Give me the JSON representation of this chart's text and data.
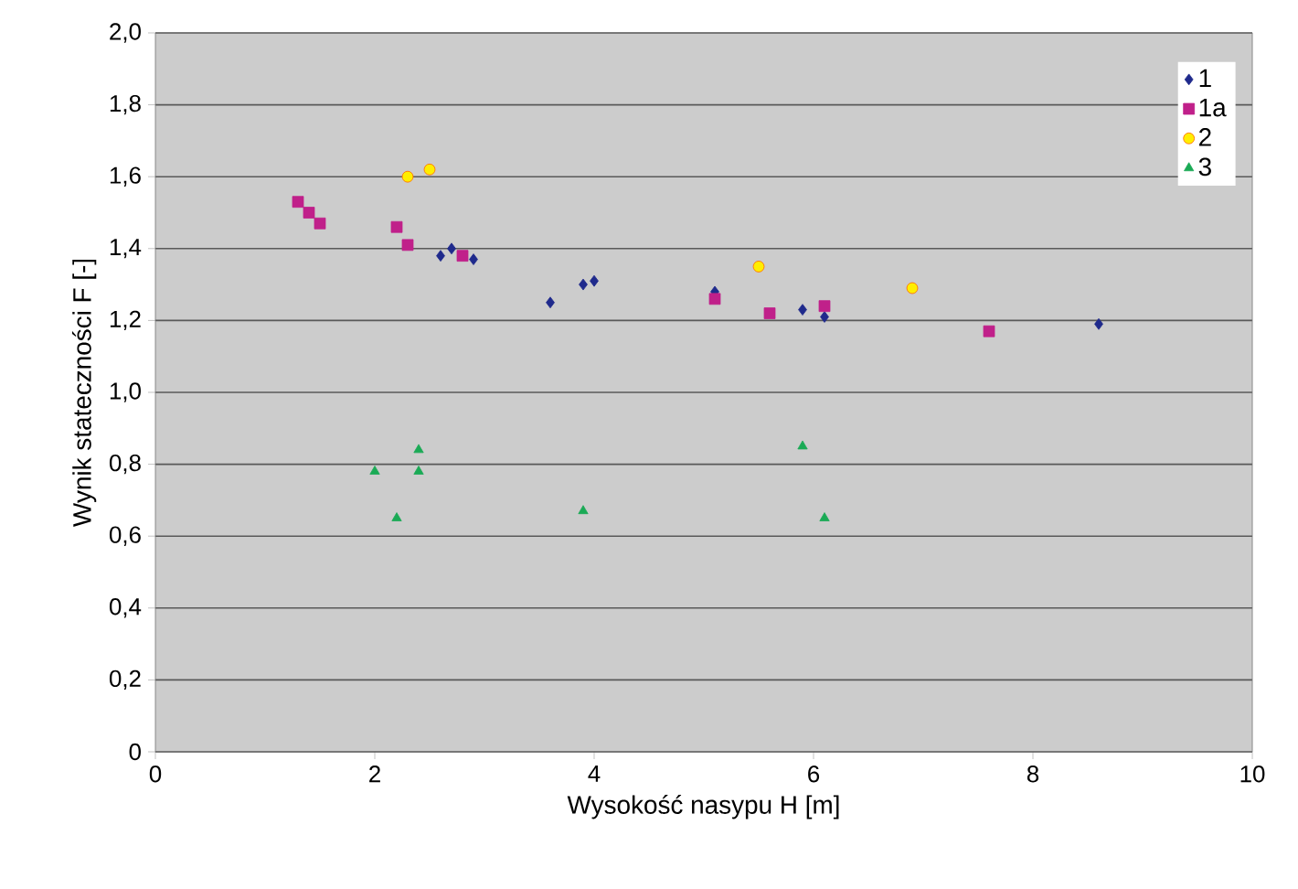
{
  "chart_data": {
    "type": "scatter",
    "xlabel": "Wysokość nasypu H [m]",
    "ylabel": "Wynik stateczności F [-]",
    "xlim": [
      0,
      10
    ],
    "xticks": [
      0,
      2,
      4,
      6,
      8,
      10
    ],
    "ylim": [
      0,
      2
    ],
    "yticks": [
      {
        "value": 0,
        "label": "0"
      },
      {
        "value": 0.2,
        "label": "0,2"
      },
      {
        "value": 0.4,
        "label": "0,4"
      },
      {
        "value": 0.6,
        "label": "0,6"
      },
      {
        "value": 0.8,
        "label": "0,8"
      },
      {
        "value": 1.0,
        "label": "1,0"
      },
      {
        "value": 1.2,
        "label": "1,2"
      },
      {
        "value": 1.4,
        "label": "1,4"
      },
      {
        "value": 1.6,
        "label": "1,6"
      },
      {
        "value": 1.8,
        "label": "1,8"
      },
      {
        "value": 2.0,
        "label": "2,0"
      }
    ],
    "grid": "y",
    "legend": "top right",
    "series": [
      {
        "name": "1",
        "color": "#1f2a8c",
        "marker": "diamond",
        "x": [
          2.6,
          2.7,
          2.9,
          3.6,
          3.9,
          4.0,
          5.1,
          5.9,
          6.1,
          8.6
        ],
        "values": [
          1.38,
          1.4,
          1.37,
          1.25,
          1.3,
          1.31,
          1.28,
          1.23,
          1.21,
          1.19
        ]
      },
      {
        "name": "1a",
        "color": "#c0208a",
        "marker": "square",
        "x": [
          1.3,
          1.4,
          1.5,
          2.2,
          2.3,
          2.8,
          5.1,
          5.6,
          6.1,
          7.6
        ],
        "values": [
          1.53,
          1.5,
          1.47,
          1.46,
          1.41,
          1.38,
          1.26,
          1.22,
          1.24,
          1.17
        ]
      },
      {
        "name": "2",
        "color": "#ffee00",
        "marker": "circle",
        "x": [
          2.3,
          2.5,
          5.5,
          6.9
        ],
        "values": [
          1.6,
          1.62,
          1.35,
          1.29
        ]
      },
      {
        "name": "3",
        "color": "#1aaa55",
        "marker": "triangle",
        "x": [
          2.0,
          2.2,
          2.4,
          2.4,
          3.9,
          5.9,
          6.1
        ],
        "values": [
          0.78,
          0.65,
          0.84,
          0.78,
          0.67,
          0.85,
          0.65
        ]
      }
    ]
  }
}
